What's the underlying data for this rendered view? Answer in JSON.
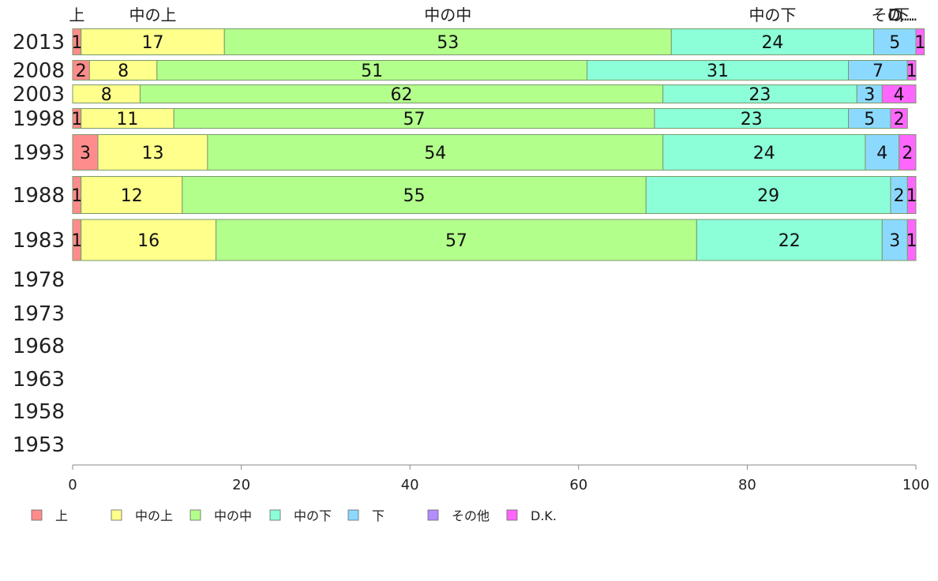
{
  "chart_data": {
    "type": "bar",
    "orientation": "horizontal",
    "stacked": true,
    "percent": true,
    "xlim": [
      0,
      100
    ],
    "xticks": [
      0,
      20,
      40,
      60,
      80,
      100
    ],
    "categories": [
      "2013",
      "2008",
      "2003",
      "1998",
      "1993",
      "1988",
      "1983",
      "1978",
      "1973",
      "1968",
      "1963",
      "1958",
      "1953"
    ],
    "top_labels": [
      "上",
      "中の上",
      "中の中",
      "中の下",
      "下",
      "その...",
      "D..."
    ],
    "legend_position": "bottom",
    "series": [
      {
        "name": "上",
        "color": "#ff8c8c",
        "values": [
          1,
          2,
          0,
          1,
          3,
          1,
          1,
          null,
          null,
          null,
          null,
          null,
          null
        ]
      },
      {
        "name": "中の上",
        "color": "#ffff8c",
        "values": [
          17,
          8,
          8,
          11,
          13,
          12,
          16,
          null,
          null,
          null,
          null,
          null,
          null
        ]
      },
      {
        "name": "中の中",
        "color": "#b3ff8c",
        "values": [
          53,
          51,
          62,
          57,
          54,
          55,
          57,
          null,
          null,
          null,
          null,
          null,
          null
        ]
      },
      {
        "name": "中の下",
        "color": "#8cffd9",
        "values": [
          24,
          31,
          23,
          23,
          24,
          29,
          22,
          null,
          null,
          null,
          null,
          null,
          null
        ]
      },
      {
        "name": "下",
        "color": "#8cd9ff",
        "values": [
          5,
          7,
          3,
          5,
          4,
          2,
          3,
          null,
          null,
          null,
          null,
          null,
          null
        ]
      },
      {
        "name": "その他",
        "color": "#b38cff",
        "values": [
          0,
          0,
          0,
          0,
          0,
          0,
          0,
          null,
          null,
          null,
          null,
          null,
          null
        ]
      },
      {
        "name": "D.K.",
        "color": "#ff66ff",
        "values": [
          1,
          1,
          4,
          2,
          2,
          1,
          1,
          null,
          null,
          null,
          null,
          null,
          null
        ]
      }
    ]
  }
}
